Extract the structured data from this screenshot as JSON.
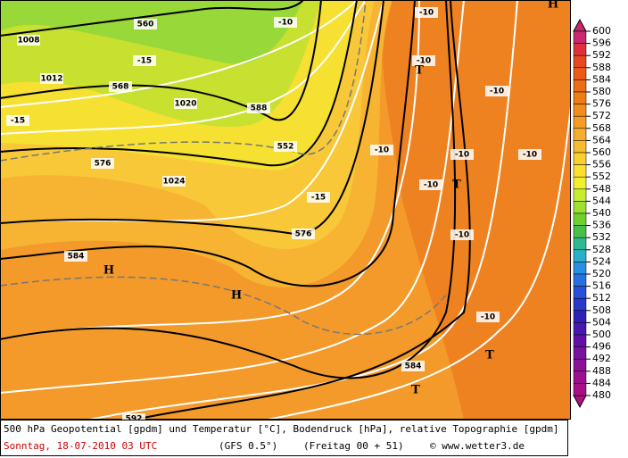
{
  "caption": {
    "line1": "500 hPa Geopotential [gpdm] und Temperatur [°C], Bodendruck [hPa], relative Topographie [gpdm]",
    "date": "Sonntag, 18-07-2010  03 UTC",
    "model": "(GFS 0.5°)",
    "run": "(Freitag 00 + 51)",
    "credit": "© www.wetter3.de"
  },
  "color_scale": {
    "labels": [
      "600",
      "596",
      "592",
      "588",
      "584",
      "580",
      "576",
      "572",
      "568",
      "564",
      "560",
      "556",
      "552",
      "548",
      "544",
      "540",
      "536",
      "532",
      "528",
      "524",
      "520",
      "516",
      "512",
      "508",
      "504",
      "500",
      "496",
      "492",
      "488",
      "484",
      "480"
    ],
    "colors": [
      "#c8286e",
      "#e0303c",
      "#e84820",
      "#ec5a18",
      "#ee6c14",
      "#f07c14",
      "#f28c1c",
      "#f49c24",
      "#f6ac2c",
      "#f8bc30",
      "#fad030",
      "#fce030",
      "#f0f030",
      "#c8ec30",
      "#9ce030",
      "#70d030",
      "#48c048",
      "#30b890",
      "#28b0c8",
      "#2890e0",
      "#2870e0",
      "#2850d8",
      "#2838c8",
      "#3020b8",
      "#4818b0",
      "#6010a8",
      "#7810a0",
      "#8c1098",
      "#9c1090",
      "#a81088",
      "#b01080"
    ]
  },
  "map_labels": [
    "560",
    "568",
    "588",
    "576",
    "576",
    "584",
    "584",
    "592",
    "552",
    "1008",
    "1012",
    "1020",
    "1024",
    "-15",
    "-15",
    "-10",
    "-10",
    "-10",
    "-10",
    "-10",
    "-10",
    "-10",
    "-10",
    "-15",
    "-10",
    "-10"
  ],
  "pressure_centers": [
    "H",
    "H",
    "H",
    "T",
    "T",
    "T",
    "T"
  ]
}
